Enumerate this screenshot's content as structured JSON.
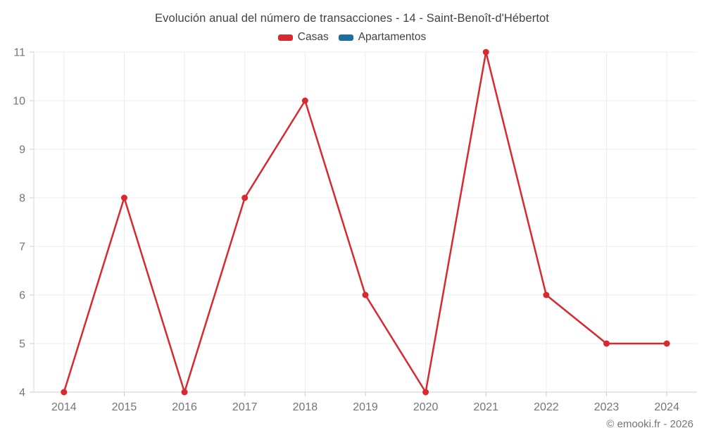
{
  "chart_data": {
    "type": "line",
    "title": "Evolución anual del número de transacciones - 14 - Saint-Benoît-d'Hébertot",
    "categories": [
      "2014",
      "2015",
      "2016",
      "2017",
      "2018",
      "2019",
      "2020",
      "2021",
      "2022",
      "2023",
      "2024"
    ],
    "series": [
      {
        "name": "Casas",
        "color": "#d7292f",
        "values": [
          4,
          8,
          4,
          8,
          10,
          6,
          4,
          11,
          6,
          5,
          5
        ]
      },
      {
        "name": "Apartamentos",
        "color": "#1c6e9f",
        "values": []
      }
    ],
    "xlabel": "",
    "ylabel": "",
    "ylim": [
      4,
      11
    ],
    "y_ticks": [
      4,
      5,
      6,
      7,
      8,
      9,
      10,
      11
    ],
    "grid": true,
    "legend_position": "top",
    "style": {
      "grid_color": "#ececec",
      "x_axis_line_color": "#cccccc",
      "y_axis_line_color": "#dadada",
      "tick_color": "#cccccc",
      "tick_label_color": "#757575",
      "title_color": "#424242",
      "background": "#ffffff"
    }
  },
  "footer": {
    "copyright": "© emooki.fr - 2026"
  }
}
